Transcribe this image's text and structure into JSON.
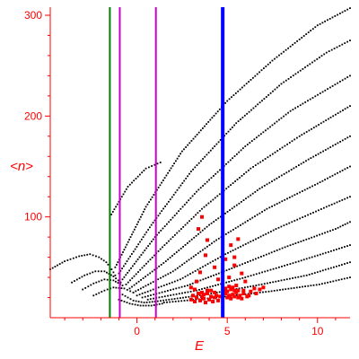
{
  "chart_data": {
    "type": "scatter",
    "title": "",
    "xlabel": "E",
    "ylabel": "<n>",
    "xlim": [
      -4.8,
      11.8
    ],
    "ylim": [
      0,
      308
    ],
    "x_ticks": [
      0,
      5,
      10
    ],
    "y_ticks": [
      100,
      200,
      300
    ],
    "grid": false,
    "legend": "none",
    "axis_color": "#ff0000",
    "vertical_lines": [
      {
        "x": -1.5,
        "color": "#008000"
      },
      {
        "x": -0.95,
        "color": "#cc00cc"
      },
      {
        "x": 1.05,
        "color": "#cc00cc"
      },
      {
        "x": 4.75,
        "color": "#0000ff"
      }
    ],
    "series": [
      {
        "color": "#000000",
        "description": "black point branches",
        "branches": [
          {
            "x": [
              -4.8,
              -4.0,
              -3.2,
              -2.6,
              -2.1,
              -1.7,
              -1.4,
              -1.2
            ],
            "y": [
              48,
              56,
              61,
              63,
              60,
              55,
              48,
              42
            ]
          },
          {
            "x": [
              -3.6,
              -2.9,
              -2.3,
              -1.8,
              -1.3,
              -0.9
            ],
            "y": [
              35,
              42,
              46,
              46,
              41,
              35
            ]
          },
          {
            "x": [
              -3.0,
              -2.4,
              -1.8,
              -1.3,
              -0.8
            ],
            "y": [
              28,
              34,
              38,
              37,
              32
            ]
          },
          {
            "x": [
              -2.4,
              -1.8,
              -1.3,
              -0.7,
              -0.2
            ],
            "y": [
              22,
              27,
              30,
              29,
              25
            ]
          },
          {
            "x": [
              -1.5,
              -0.5,
              0.5,
              1.3
            ],
            "y": [
              100,
              130,
              148,
              154
            ]
          },
          {
            "x": [
              -1.2,
              0.5,
              2.5,
              5.0,
              7.5,
              10.0,
              11.8
            ],
            "y": [
              50,
              110,
              165,
              215,
              255,
              290,
              307
            ]
          },
          {
            "x": [
              -1.0,
              0.8,
              3.0,
              5.5,
              8.0,
              10.5,
              11.8
            ],
            "y": [
              44,
              92,
              145,
              193,
              232,
              263,
              275
            ]
          },
          {
            "x": [
              -0.8,
              1.0,
              3.3,
              6.0,
              8.5,
              11.8
            ],
            "y": [
              38,
              80,
              125,
              170,
              205,
              240
            ]
          },
          {
            "x": [
              -0.6,
              1.3,
              3.6,
              6.3,
              9.0,
              11.8
            ],
            "y": [
              33,
              68,
              108,
              148,
              180,
              210
            ]
          },
          {
            "x": [
              -0.4,
              1.6,
              4.0,
              6.8,
              9.5,
              11.8
            ],
            "y": [
              29,
              56,
              92,
              128,
              157,
              180
            ]
          },
          {
            "x": [
              -0.2,
              2.0,
              4.4,
              7.2,
              10.0,
              11.8
            ],
            "y": [
              25,
              46,
              77,
              108,
              133,
              150
            ]
          },
          {
            "x": [
              0.0,
              2.4,
              4.9,
              7.7,
              10.5,
              11.8
            ],
            "y": [
              22,
              38,
              63,
              88,
              110,
              120
            ]
          },
          {
            "x": [
              0.3,
              2.8,
              5.4,
              8.2,
              11.0,
              11.8
            ],
            "y": [
              20,
              32,
              50,
              70,
              88,
              95
            ]
          },
          {
            "x": [
              0.6,
              3.3,
              6.0,
              8.8,
              11.8
            ],
            "y": [
              18,
              27,
              40,
              55,
              72
            ]
          },
          {
            "x": [
              1.0,
              3.8,
              6.6,
              9.4,
              11.8
            ],
            "y": [
              16,
              23,
              32,
              42,
              55
            ]
          },
          {
            "x": [
              1.5,
              4.4,
              7.3,
              10.1,
              11.8
            ],
            "y": [
              15,
              20,
              26,
              33,
              40
            ]
          },
          {
            "x": [
              -1.0,
              -0.4,
              0.2,
              0.8,
              1.4
            ],
            "y": [
              18,
              14,
              12,
              12,
              14
            ]
          },
          {
            "x": [
              -0.8,
              -0.2,
              0.4,
              1.0
            ],
            "y": [
              23,
              17,
              15,
              16
            ]
          }
        ]
      },
      {
        "color": "#ff0000",
        "description": "red cluster",
        "points": [
          [
            3.4,
            88
          ],
          [
            3.6,
            100
          ],
          [
            3.8,
            62
          ],
          [
            3.9,
            77
          ],
          [
            3.5,
            45
          ],
          [
            3.3,
            36
          ],
          [
            5.6,
            78
          ],
          [
            5.2,
            72
          ],
          [
            5.4,
            60
          ],
          [
            4.3,
            50
          ],
          [
            4.9,
            58
          ],
          [
            5.4,
            52
          ],
          [
            5.8,
            44
          ],
          [
            5.1,
            40
          ],
          [
            6.0,
            36
          ],
          [
            4.5,
            38
          ],
          [
            3.0,
            30
          ],
          [
            3.2,
            28
          ],
          [
            3.6,
            25
          ],
          [
            3.9,
            24
          ],
          [
            4.1,
            27
          ],
          [
            4.4,
            22
          ],
          [
            3.1,
            22
          ],
          [
            3.3,
            20
          ],
          [
            3.7,
            19
          ],
          [
            4.0,
            18
          ],
          [
            4.3,
            20
          ],
          [
            4.6,
            21
          ],
          [
            3.0,
            18
          ],
          [
            3.5,
            17
          ],
          [
            3.8,
            15
          ],
          [
            4.2,
            16
          ],
          [
            4.5,
            17
          ],
          [
            3.4,
            24
          ],
          [
            3.9,
            27
          ],
          [
            3.7,
            23
          ],
          [
            3.2,
            16
          ],
          [
            4.1,
            21
          ],
          [
            3.6,
            21
          ],
          [
            4.3,
            25
          ],
          [
            4.9,
            24
          ],
          [
            5.1,
            22
          ],
          [
            5.3,
            23
          ],
          [
            5.5,
            25
          ],
          [
            5.7,
            22
          ],
          [
            5.9,
            24
          ],
          [
            5.0,
            20
          ],
          [
            5.2,
            19
          ],
          [
            5.4,
            21
          ],
          [
            5.6,
            20
          ],
          [
            5.8,
            19
          ],
          [
            6.1,
            21
          ],
          [
            4.8,
            27
          ],
          [
            5.0,
            26
          ],
          [
            5.2,
            28
          ],
          [
            5.4,
            27
          ],
          [
            5.6,
            27
          ],
          [
            5.9,
            27
          ],
          [
            6.3,
            26
          ],
          [
            6.5,
            29
          ],
          [
            6.8,
            28
          ],
          [
            7.0,
            30
          ],
          [
            6.2,
            22
          ],
          [
            6.6,
            24
          ],
          [
            5.1,
            31
          ],
          [
            5.5,
            32
          ],
          [
            5.3,
            30
          ],
          [
            4.9,
            29
          ]
        ]
      }
    ]
  }
}
